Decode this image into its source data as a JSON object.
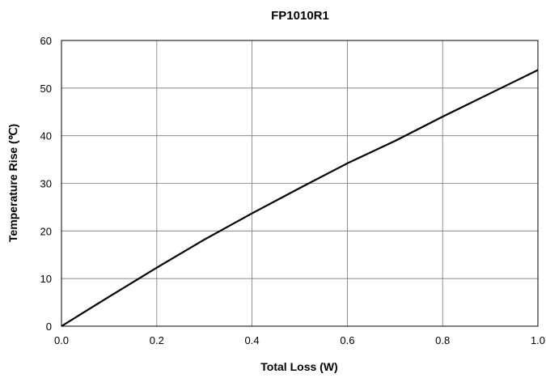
{
  "chart_data": {
    "type": "line",
    "title": "FP1010R1",
    "xlabel": "Total Loss (W)",
    "ylabel": "Temperature Rise (℃)",
    "xlim": [
      0.0,
      1.0
    ],
    "ylim": [
      0,
      60
    ],
    "x_ticks": [
      "0.0",
      "0.2",
      "0.4",
      "0.6",
      "0.8",
      "1.0"
    ],
    "y_ticks": [
      "0",
      "10",
      "20",
      "30",
      "40",
      "50",
      "60"
    ],
    "grid": true,
    "legend": "none",
    "line_color": "#000000",
    "series": [
      {
        "x": [
          0.0,
          0.1,
          0.2,
          0.3,
          0.4,
          0.5,
          0.6,
          0.7,
          0.8,
          0.9,
          1.0
        ],
        "values": [
          0,
          6.2,
          12.3,
          18.2,
          23.7,
          29.0,
          34.2,
          38.9,
          44.0,
          48.9,
          53.8
        ]
      }
    ]
  }
}
